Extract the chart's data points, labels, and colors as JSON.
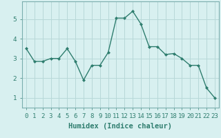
{
  "x": [
    0,
    1,
    2,
    3,
    4,
    5,
    6,
    7,
    8,
    9,
    10,
    11,
    12,
    13,
    14,
    15,
    16,
    17,
    18,
    19,
    20,
    21,
    22,
    23
  ],
  "y": [
    3.5,
    2.85,
    2.85,
    3.0,
    3.0,
    3.5,
    2.85,
    1.9,
    2.65,
    2.65,
    3.3,
    5.05,
    5.05,
    5.4,
    4.75,
    3.6,
    3.6,
    3.2,
    3.25,
    3.0,
    2.65,
    2.65,
    1.5,
    1.0
  ],
  "line_color": "#2e7d6e",
  "marker": "D",
  "marker_size": 2.0,
  "linewidth": 1.0,
  "bg_color": "#d8f0f0",
  "grid_color": "#b8d8d8",
  "xlabel": "Humidex (Indice chaleur)",
  "xlim": [
    -0.5,
    23.5
  ],
  "ylim": [
    0.5,
    5.9
  ],
  "yticks": [
    1,
    2,
    3,
    4,
    5
  ],
  "xtick_labels": [
    "0",
    "1",
    "2",
    "3",
    "4",
    "5",
    "6",
    "7",
    "8",
    "9",
    "10",
    "11",
    "12",
    "13",
    "14",
    "15",
    "16",
    "17",
    "18",
    "19",
    "20",
    "21",
    "22",
    "23"
  ],
  "xlabel_fontsize": 7.5,
  "tick_fontsize": 6.5,
  "tick_color": "#2e7d6e"
}
